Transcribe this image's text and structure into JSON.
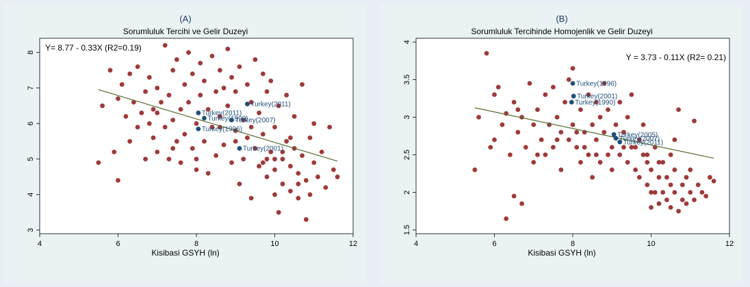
{
  "chart_data": [
    {
      "type": "scatter",
      "panel_label": "(A)",
      "title": "Sorumluluk Tercihi ve Gelir Duzeyi",
      "xlabel": "Kisibasi GSYH (ln)",
      "ylabel": "",
      "xlim": [
        4,
        12
      ],
      "ylim": [
        2.9,
        8.4
      ],
      "xticks": [
        4,
        6,
        8,
        10,
        12
      ],
      "yticks": [
        3,
        4,
        5,
        6,
        7,
        8
      ],
      "equation": "Y= 8.77 - 0.33X (R2=0.19)",
      "fit": {
        "intercept": 8.77,
        "slope": -0.33,
        "x_range": [
          5.5,
          11.6
        ]
      },
      "colors": {
        "points": "#9e3a3a",
        "highlight": "#1f4e79",
        "fit": "#556b2f"
      },
      "highlight": [
        {
          "label": "Turkey(2011)",
          "x": 8.05,
          "y": 6.3
        },
        {
          "label": "Turkey(1990)",
          "x": 8.2,
          "y": 6.15
        },
        {
          "label": "Turkey(2007)",
          "x": 8.9,
          "y": 6.1
        },
        {
          "label": "Turkey(1996)",
          "x": 8.05,
          "y": 5.85
        },
        {
          "label": "Turkey(2001)",
          "x": 9.1,
          "y": 5.3
        },
        {
          "label": "Turkey(2011)",
          "x": 9.3,
          "y": 6.55
        }
      ],
      "points": [
        [
          5.5,
          4.9
        ],
        [
          5.6,
          6.5
        ],
        [
          5.8,
          7.5
        ],
        [
          5.9,
          5.2
        ],
        [
          6.0,
          4.4
        ],
        [
          6.0,
          6.7
        ],
        [
          6.1,
          7.1
        ],
        [
          6.2,
          6.2
        ],
        [
          6.3,
          5.5
        ],
        [
          6.3,
          7.4
        ],
        [
          6.4,
          6.6
        ],
        [
          6.5,
          5.9
        ],
        [
          6.5,
          7.6
        ],
        [
          6.6,
          6.3
        ],
        [
          6.7,
          5.0
        ],
        [
          6.7,
          6.9
        ],
        [
          6.8,
          7.3
        ],
        [
          6.9,
          5.6
        ],
        [
          6.9,
          6.4
        ],
        [
          7.0,
          7.0
        ],
        [
          7.0,
          5.2
        ],
        [
          7.1,
          6.6
        ],
        [
          7.2,
          8.2
        ],
        [
          7.2,
          5.9
        ],
        [
          7.3,
          6.8
        ],
        [
          7.3,
          5.0
        ],
        [
          7.4,
          7.5
        ],
        [
          7.4,
          6.1
        ],
        [
          7.5,
          5.5
        ],
        [
          7.5,
          7.8
        ],
        [
          7.6,
          6.4
        ],
        [
          7.6,
          4.9
        ],
        [
          7.7,
          7.1
        ],
        [
          7.7,
          5.7
        ],
        [
          7.8,
          8.0
        ],
        [
          7.8,
          6.6
        ],
        [
          7.9,
          5.3
        ],
        [
          7.9,
          7.4
        ],
        [
          8.0,
          6.0
        ],
        [
          8.0,
          4.7
        ],
        [
          8.1,
          7.7
        ],
        [
          8.1,
          6.8
        ],
        [
          8.2,
          5.5
        ],
        [
          8.2,
          7.2
        ],
        [
          8.3,
          6.4
        ],
        [
          8.3,
          4.6
        ],
        [
          8.4,
          7.9
        ],
        [
          8.4,
          5.9
        ],
        [
          8.5,
          6.9
        ],
        [
          8.5,
          5.1
        ],
        [
          8.6,
          7.5
        ],
        [
          8.6,
          6.2
        ],
        [
          8.7,
          5.4
        ],
        [
          8.7,
          7.0
        ],
        [
          8.8,
          8.1
        ],
        [
          8.8,
          6.5
        ],
        [
          8.9,
          4.9
        ],
        [
          8.9,
          7.3
        ],
        [
          9.0,
          5.8
        ],
        [
          9.0,
          6.9
        ],
        [
          9.1,
          4.3
        ],
        [
          9.1,
          7.6
        ],
        [
          9.2,
          6.1
        ],
        [
          9.2,
          5.0
        ],
        [
          9.3,
          7.1
        ],
        [
          9.3,
          5.6
        ],
        [
          9.4,
          6.6
        ],
        [
          9.4,
          3.9
        ],
        [
          9.5,
          7.8
        ],
        [
          9.5,
          5.3
        ],
        [
          9.6,
          6.3
        ],
        [
          9.6,
          4.8
        ],
        [
          9.7,
          7.4
        ],
        [
          9.7,
          5.7
        ],
        [
          9.8,
          6.9
        ],
        [
          9.8,
          4.5
        ],
        [
          9.9,
          5.2
        ],
        [
          9.9,
          7.2
        ],
        [
          10.0,
          4.0
        ],
        [
          10.0,
          5.9
        ],
        [
          10.0,
          4.7
        ],
        [
          10.1,
          6.5
        ],
        [
          10.1,
          3.5
        ],
        [
          10.2,
          5.0
        ],
        [
          10.2,
          4.3
        ],
        [
          10.3,
          6.8
        ],
        [
          10.3,
          5.5
        ],
        [
          10.4,
          4.1
        ],
        [
          10.4,
          4.8
        ],
        [
          10.5,
          5.3
        ],
        [
          10.5,
          6.2
        ],
        [
          10.6,
          3.9
        ],
        [
          10.6,
          4.6
        ],
        [
          10.7,
          5.1
        ],
        [
          10.7,
          7.1
        ],
        [
          10.8,
          4.4
        ],
        [
          10.8,
          3.3
        ],
        [
          10.9,
          5.6
        ],
        [
          10.9,
          4.0
        ],
        [
          11.0,
          4.9
        ],
        [
          11.0,
          6.0
        ],
        [
          11.1,
          4.5
        ],
        [
          11.2,
          5.2
        ],
        [
          11.3,
          4.2
        ],
        [
          11.4,
          5.9
        ],
        [
          11.5,
          4.7
        ],
        [
          11.6,
          4.5
        ],
        [
          6.8,
          6.0
        ],
        [
          7.0,
          6.3
        ],
        [
          7.4,
          5.3
        ],
        [
          8.0,
          5.0
        ],
        [
          8.6,
          5.9
        ],
        [
          9.0,
          5.5
        ],
        [
          9.4,
          5.9
        ],
        [
          9.8,
          5.0
        ],
        [
          10.2,
          5.2
        ],
        [
          10.4,
          5.6
        ],
        [
          10.6,
          4.3
        ],
        [
          9.7,
          4.9
        ],
        [
          10.0,
          5.0
        ]
      ]
    },
    {
      "type": "scatter",
      "panel_label": "(B)",
      "title": "Sorumluluk Tercihinde Homojenlik ve Gelir Duzeyi",
      "xlabel": "Kisibasi GSYH (ln)",
      "ylabel": "",
      "xlim": [
        4,
        12
      ],
      "ylim": [
        1.45,
        4.05
      ],
      "xticks": [
        4,
        6,
        8,
        10,
        12
      ],
      "yticks": [
        1.5,
        2,
        2.5,
        3,
        3.5,
        4
      ],
      "equation": "Y = 3.73 - 0.11X (R2= 0.21)",
      "fit": {
        "intercept": 3.73,
        "slope": -0.11,
        "x_range": [
          5.5,
          11.6
        ]
      },
      "colors": {
        "points": "#9e3a3a",
        "highlight": "#1f4e79",
        "fit": "#556b2f"
      },
      "highlight": [
        {
          "label": "Turkey(1996)",
          "x": 8.0,
          "y": 3.45
        },
        {
          "label": "Turkey(2001)",
          "x": 8.02,
          "y": 3.28
        },
        {
          "label": "Turkey(1990)",
          "x": 7.97,
          "y": 3.2
        },
        {
          "label": "Turkey(2005)",
          "x": 9.05,
          "y": 2.77
        },
        {
          "label": "Turkey(2007)",
          "x": 9.1,
          "y": 2.72
        },
        {
          "label": "Turkey(2011)",
          "x": 9.2,
          "y": 2.67
        }
      ],
      "points": [
        [
          5.5,
          2.3
        ],
        [
          5.6,
          3.0
        ],
        [
          5.8,
          3.85
        ],
        [
          5.9,
          2.6
        ],
        [
          6.0,
          3.3
        ],
        [
          6.0,
          2.7
        ],
        [
          6.1,
          3.4
        ],
        [
          6.2,
          2.9
        ],
        [
          6.3,
          1.65
        ],
        [
          6.3,
          3.05
        ],
        [
          6.4,
          2.5
        ],
        [
          6.5,
          1.95
        ],
        [
          6.5,
          3.2
        ],
        [
          6.6,
          2.8
        ],
        [
          6.7,
          1.85
        ],
        [
          6.7,
          3.0
        ],
        [
          6.8,
          2.6
        ],
        [
          6.9,
          3.45
        ],
        [
          7.0,
          2.9
        ],
        [
          7.0,
          2.4
        ],
        [
          7.1,
          3.1
        ],
        [
          7.2,
          2.7
        ],
        [
          7.3,
          3.3
        ],
        [
          7.3,
          2.5
        ],
        [
          7.4,
          2.9
        ],
        [
          7.5,
          3.4
        ],
        [
          7.5,
          2.6
        ],
        [
          7.6,
          3.0
        ],
        [
          7.7,
          2.8
        ],
        [
          7.7,
          2.3
        ],
        [
          7.8,
          3.2
        ],
        [
          7.9,
          2.7
        ],
        [
          7.9,
          3.5
        ],
        [
          8.0,
          2.9
        ],
        [
          8.0,
          3.65
        ],
        [
          8.1,
          2.6
        ],
        [
          8.2,
          3.1
        ],
        [
          8.2,
          2.4
        ],
        [
          8.3,
          2.8
        ],
        [
          8.4,
          3.3
        ],
        [
          8.4,
          2.5
        ],
        [
          8.5,
          2.9
        ],
        [
          8.5,
          2.2
        ],
        [
          8.6,
          3.2
        ],
        [
          8.6,
          2.7
        ],
        [
          8.7,
          3.0
        ],
        [
          8.7,
          2.4
        ],
        [
          8.8,
          3.45
        ],
        [
          8.8,
          2.8
        ],
        [
          8.9,
          2.5
        ],
        [
          8.9,
          3.1
        ],
        [
          9.0,
          2.6
        ],
        [
          9.0,
          2.3
        ],
        [
          9.1,
          2.9
        ],
        [
          9.2,
          3.2
        ],
        [
          9.2,
          2.5
        ],
        [
          9.3,
          2.8
        ],
        [
          9.4,
          2.4
        ],
        [
          9.4,
          3.0
        ],
        [
          9.5,
          2.6
        ],
        [
          9.5,
          3.3
        ],
        [
          9.6,
          2.3
        ],
        [
          9.7,
          2.7
        ],
        [
          9.7,
          2.2
        ],
        [
          9.8,
          2.5
        ],
        [
          9.8,
          2.9
        ],
        [
          9.9,
          2.1
        ],
        [
          9.9,
          2.4
        ],
        [
          10.0,
          2.0
        ],
        [
          10.0,
          2.3
        ],
        [
          10.0,
          1.8
        ],
        [
          10.1,
          2.6
        ],
        [
          10.1,
          2.0
        ],
        [
          10.2,
          2.2
        ],
        [
          10.2,
          1.85
        ],
        [
          10.3,
          2.4
        ],
        [
          10.3,
          2.0
        ],
        [
          10.4,
          1.9
        ],
        [
          10.4,
          2.2
        ],
        [
          10.5,
          2.1
        ],
        [
          10.5,
          1.8
        ],
        [
          10.6,
          2.3
        ],
        [
          10.6,
          2.0
        ],
        [
          10.7,
          1.75
        ],
        [
          10.7,
          3.1
        ],
        [
          10.8,
          2.1
        ],
        [
          10.8,
          1.9
        ],
        [
          10.9,
          2.2
        ],
        [
          10.9,
          1.85
        ],
        [
          11.0,
          2.0
        ],
        [
          11.0,
          2.3
        ],
        [
          11.1,
          2.95
        ],
        [
          11.1,
          1.9
        ],
        [
          11.2,
          2.1
        ],
        [
          11.3,
          2.0
        ],
        [
          11.4,
          1.95
        ],
        [
          11.5,
          2.2
        ],
        [
          11.6,
          2.15
        ],
        [
          6.6,
          3.1
        ],
        [
          7.1,
          2.5
        ],
        [
          7.6,
          2.7
        ],
        [
          8.1,
          2.8
        ],
        [
          8.3,
          2.6
        ],
        [
          8.6,
          2.5
        ],
        [
          9.3,
          2.6
        ],
        [
          9.6,
          2.6
        ],
        [
          9.9,
          2.5
        ],
        [
          10.2,
          2.4
        ],
        [
          10.5,
          2.5
        ],
        [
          10.6,
          2.7
        ]
      ]
    }
  ]
}
